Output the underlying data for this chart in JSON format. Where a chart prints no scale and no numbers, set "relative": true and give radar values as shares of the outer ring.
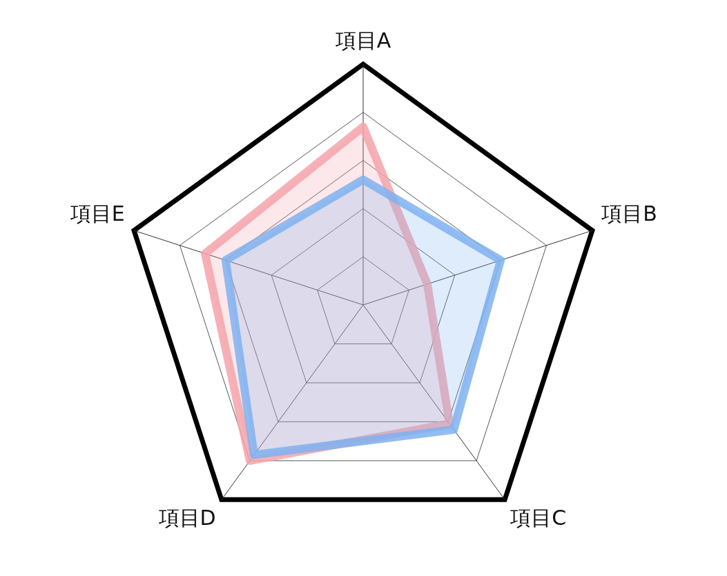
{
  "chart_data": {
    "type": "radar",
    "relative": true,
    "categories": [
      "項目A",
      "項目B",
      "項目C",
      "項目D",
      "項目E"
    ],
    "series": [
      {
        "color": "#7fb2f0",
        "values": [
          0.52,
          0.6,
          0.64,
          0.77,
          0.6
        ]
      },
      {
        "color": "#f4a3aa",
        "values": [
          0.74,
          0.28,
          0.61,
          0.8,
          0.69
        ]
      }
    ],
    "legend": false
  }
}
